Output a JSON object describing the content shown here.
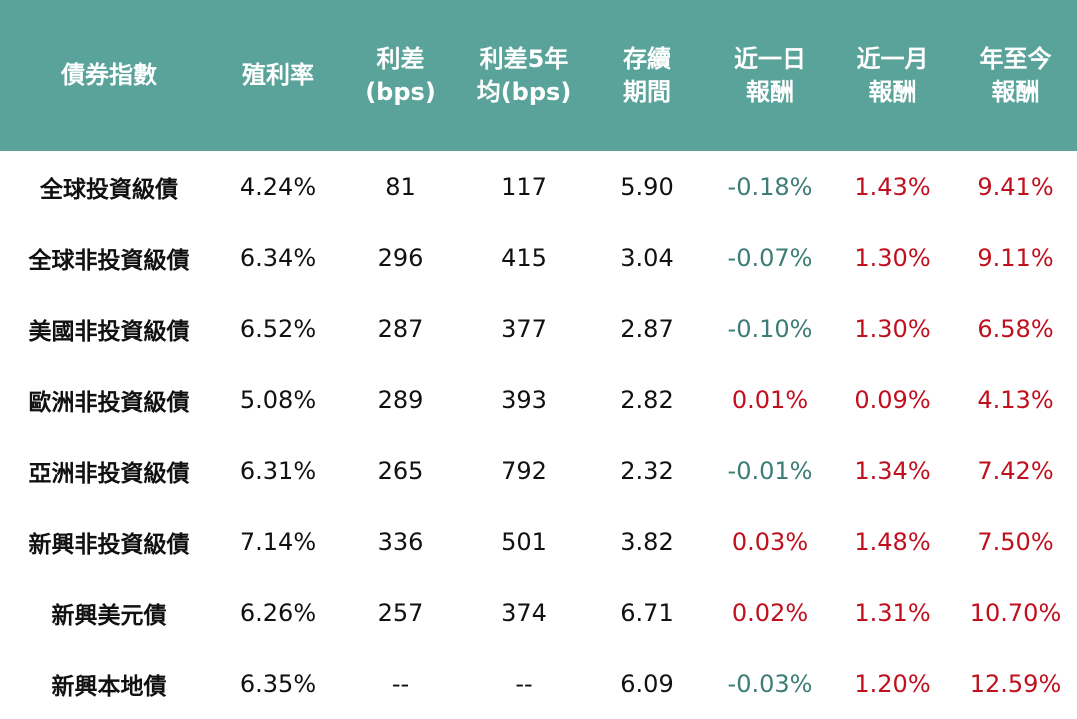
{
  "colors": {
    "header_bg": "#5aa39a",
    "positive": "#c0101e",
    "negative": "#3d7d77",
    "text": "#111111"
  },
  "chart_data": {
    "type": "table",
    "headers": [
      "債券指數",
      "殖利率",
      "利差\n(bps)",
      "利差5年\n均(bps)",
      "存續\n期間",
      "近一日\n報酬",
      "近一月\n報酬",
      "年至今\n報酬"
    ],
    "rows": [
      [
        "全球投資級債",
        "4.24%",
        "81",
        "117",
        "5.90",
        "-0.18%",
        "1.43%",
        "9.41%"
      ],
      [
        "全球非投資級債",
        "6.34%",
        "296",
        "415",
        "3.04",
        "-0.07%",
        "1.30%",
        "9.11%"
      ],
      [
        "美國非投資級債",
        "6.52%",
        "287",
        "377",
        "2.87",
        "-0.10%",
        "1.30%",
        "6.58%"
      ],
      [
        "歐洲非投資級債",
        "5.08%",
        "289",
        "393",
        "2.82",
        "0.01%",
        "0.09%",
        "4.13%"
      ],
      [
        "亞洲非投資級債",
        "6.31%",
        "265",
        "792",
        "2.32",
        "-0.01%",
        "1.34%",
        "7.42%"
      ],
      [
        "新興非投資級債",
        "7.14%",
        "336",
        "501",
        "3.82",
        "0.03%",
        "1.48%",
        "7.50%"
      ],
      [
        "新興美元債",
        "6.26%",
        "257",
        "374",
        "6.71",
        "0.02%",
        "1.31%",
        "10.70%"
      ],
      [
        "新興本地債",
        "6.35%",
        "--",
        "--",
        "6.09",
        "-0.03%",
        "1.20%",
        "12.59%"
      ]
    ]
  }
}
